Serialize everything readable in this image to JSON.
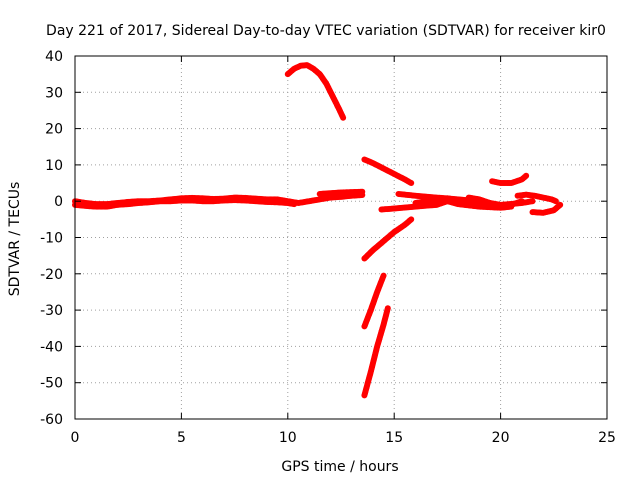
{
  "chart_data": {
    "type": "scatter",
    "title": "Day 221 of 2017, Sidereal Day-to-day VTEC variation (SDTVAR) for receiver kir0",
    "xlabel": "GPS time / hours",
    "ylabel": "SDTVAR / TECUs",
    "xlim": [
      0,
      25
    ],
    "ylim": [
      -60,
      40
    ],
    "xticks": [
      0,
      5,
      10,
      15,
      20,
      25
    ],
    "yticks": [
      -60,
      -50,
      -40,
      -30,
      -20,
      -10,
      0,
      10,
      20,
      30,
      40
    ],
    "grid": true,
    "color": "#ff0000",
    "series": [
      {
        "x": [
          0,
          0.5,
          1,
          1.5,
          2,
          2.5,
          3,
          3.5,
          4,
          4.5,
          5,
          5.5,
          6,
          6.5,
          7,
          7.5,
          8,
          8.5,
          9,
          9.5,
          10,
          10.5,
          11,
          11.5,
          12,
          12.5,
          13,
          13.5
        ],
        "y": [
          0,
          -0.5,
          -0.8,
          -0.8,
          -0.5,
          -0.2,
          0,
          0,
          0.2,
          0.5,
          0.8,
          0.9,
          0.8,
          0.6,
          0.7,
          1,
          0.9,
          0.7,
          0.5,
          0.5,
          0,
          -0.5,
          0,
          0.5,
          1,
          1.2,
          1.5,
          1.7
        ]
      },
      {
        "x": [
          0,
          0.5,
          1,
          1.5,
          2,
          2.5,
          3,
          3.5,
          4,
          4.5,
          5,
          5.5,
          6,
          6.5,
          7,
          7.5,
          8,
          8.5,
          9,
          9.5,
          10,
          10.3
        ],
        "y": [
          -1,
          -1.3,
          -1.5,
          -1.5,
          -1,
          -0.8,
          -0.5,
          -0.3,
          0,
          0,
          0.2,
          0.2,
          0,
          0,
          0.2,
          0.3,
          0.2,
          0,
          -0.2,
          -0.3,
          -0.5,
          -0.8
        ]
      },
      {
        "x": [
          11.5,
          12,
          12.5,
          13,
          13.5
        ],
        "y": [
          2,
          2.2,
          2.4,
          2.5,
          2.6
        ]
      },
      {
        "x": [
          10,
          10.3,
          10.6,
          10.9,
          11.2,
          11.5,
          11.8,
          12.1,
          12.4,
          12.6
        ],
        "y": [
          35,
          36.5,
          37.3,
          37.5,
          36.5,
          35,
          32.5,
          29,
          25.5,
          23
        ]
      },
      {
        "x": [
          13.6,
          14,
          14.5,
          15,
          15.5,
          15.8
        ],
        "y": [
          11.5,
          10.5,
          9,
          7.5,
          6,
          5
        ]
      },
      {
        "x": [
          13.6,
          14,
          14.5,
          15,
          15.5,
          15.8
        ],
        "y": [
          -15.8,
          -13.5,
          -11,
          -8.5,
          -6.5,
          -5
        ]
      },
      {
        "x": [
          13.6,
          13.9,
          14.2,
          14.5
        ],
        "y": [
          -34.5,
          -30,
          -25,
          -20.5
        ]
      },
      {
        "x": [
          13.6,
          13.9,
          14.2,
          14.5,
          14.7
        ],
        "y": [
          -53.5,
          -47,
          -40,
          -34,
          -29.5
        ]
      },
      {
        "x": [
          15.2,
          16,
          17,
          18,
          19,
          20,
          21,
          21.5
        ],
        "y": [
          2,
          1.5,
          1,
          0.5,
          0,
          -1,
          -0.5,
          0
        ]
      },
      {
        "x": [
          14.4,
          15,
          16,
          17,
          17.5,
          18,
          19,
          20,
          20.5
        ],
        "y": [
          -2.3,
          -2,
          -1.5,
          -1,
          0,
          -0.8,
          -1.5,
          -1.8,
          -1.5
        ]
      },
      {
        "x": [
          16,
          16.5,
          17,
          17.5,
          18
        ],
        "y": [
          -0.5,
          0,
          0.5,
          0.8,
          0.3
        ]
      },
      {
        "x": [
          18.5,
          19,
          19.5,
          20,
          20.5,
          21
        ],
        "y": [
          1,
          0.5,
          -0.5,
          -1.5,
          -1,
          0
        ]
      },
      {
        "x": [
          19.6,
          20,
          20.5,
          21,
          21.2
        ],
        "y": [
          5.5,
          5,
          5,
          6,
          7
        ]
      },
      {
        "x": [
          20.8,
          21.2,
          21.6,
          22,
          22.4,
          22.6
        ],
        "y": [
          1.5,
          1.8,
          1.5,
          1,
          0.5,
          0
        ]
      },
      {
        "x": [
          21.5,
          22,
          22.5,
          22.8
        ],
        "y": [
          -3,
          -3.2,
          -2.5,
          -1
        ]
      }
    ]
  }
}
